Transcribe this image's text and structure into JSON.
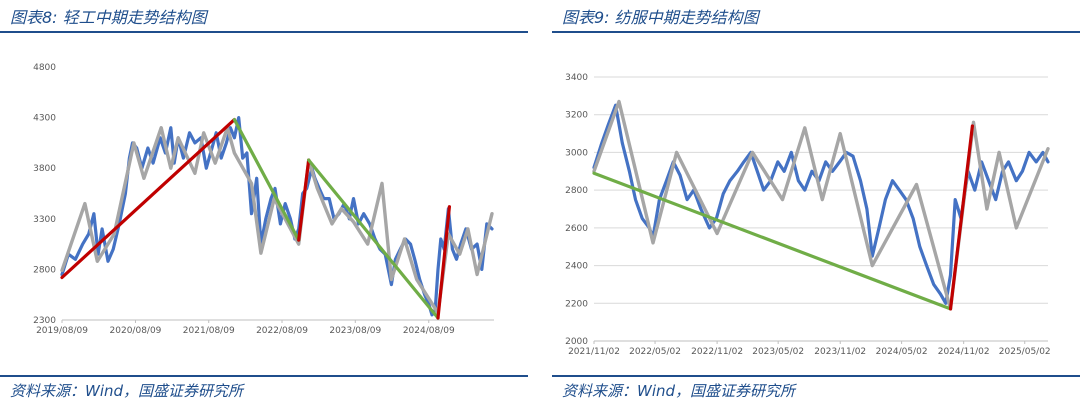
{
  "figures": [
    {
      "title": "图表8:  轻工中期走势结构图",
      "source": "资料来源：Wind，国盛证券研究所",
      "chart_data": {
        "type": "line",
        "ylim": [
          2300,
          4800
        ],
        "yticks": [
          2300,
          2800,
          3300,
          3800,
          4300,
          4800
        ],
        "xlim": [
          "2019-08-09",
          "2025-06-30"
        ],
        "xtick_labels": [
          "2019/08/09",
          "2020/08/09",
          "2021/08/09",
          "2022/08/09",
          "2023/08/09",
          "2024/08/09"
        ],
        "xtick_dates": [
          "2019-08-09",
          "2020-08-09",
          "2021-08-09",
          "2022-08-09",
          "2023-08-09",
          "2024-08-09"
        ],
        "grid": false,
        "series": [
          {
            "role": "index",
            "color": "#4472c4",
            "x": [
              "2019-08-09",
              "2019-09-10",
              "2019-10-15",
              "2019-11-20",
              "2019-12-20",
              "2020-01-15",
              "2020-02-05",
              "2020-02-25",
              "2020-03-25",
              "2020-04-20",
              "2020-05-20",
              "2020-06-20",
              "2020-07-10",
              "2020-07-25",
              "2020-08-15",
              "2020-09-10",
              "2020-10-10",
              "2020-11-05",
              "2020-12-10",
              "2021-01-05",
              "2021-02-01",
              "2021-02-18",
              "2021-03-10",
              "2021-04-05",
              "2021-05-05",
              "2021-06-01",
              "2021-07-01",
              "2021-07-28",
              "2021-08-25",
              "2021-09-15",
              "2021-10-10",
              "2021-11-05",
              "2021-11-25",
              "2021-12-15",
              "2022-01-05",
              "2022-01-25",
              "2022-02-15",
              "2022-03-10",
              "2022-04-05",
              "2022-04-26",
              "2022-05-20",
              "2022-06-15",
              "2022-07-05",
              "2022-08-01",
              "2022-08-25",
              "2022-09-20",
              "2022-10-12",
              "2022-10-31",
              "2022-11-20",
              "2022-12-10",
              "2023-01-05",
              "2023-01-20",
              "2023-02-10",
              "2023-03-05",
              "2023-04-01",
              "2023-04-25",
              "2023-05-20",
              "2023-06-15",
              "2023-07-10",
              "2023-07-31",
              "2023-08-25",
              "2023-09-20",
              "2023-10-20",
              "2023-11-15",
              "2023-12-10",
              "2024-01-05",
              "2024-02-05",
              "2024-02-25",
              "2024-03-20",
              "2024-04-15",
              "2024-05-10",
              "2024-05-31",
              "2024-06-25",
              "2024-07-20",
              "2024-08-10",
              "2024-08-25",
              "2024-09-10",
              "2024-09-24",
              "2024-10-08",
              "2024-10-25",
              "2024-11-15",
              "2024-12-05",
              "2024-12-25",
              "2025-01-15",
              "2025-02-10",
              "2025-03-10",
              "2025-04-07",
              "2025-04-30",
              "2025-05-25",
              "2025-06-20"
            ],
            "y": [
              2750,
              2950,
              2900,
              3050,
              3150,
              3350,
              2950,
              3200,
              2880,
              3000,
              3250,
              3550,
              3900,
              4050,
              4000,
              3800,
              4000,
              3850,
              4100,
              3950,
              4200,
              3850,
              4100,
              3900,
              4150,
              4050,
              4100,
              3800,
              4000,
              4150,
              3900,
              4050,
              4200,
              4100,
              4300,
              3900,
              3950,
              3350,
              3700,
              3050,
              3300,
              3500,
              3600,
              3250,
              3450,
              3300,
              3100,
              3200,
              3550,
              3600,
              3800,
              3700,
              3600,
              3500,
              3500,
              3300,
              3350,
              3450,
              3300,
              3500,
              3250,
              3350,
              3250,
              3100,
              3000,
              2950,
              2650,
              2900,
              3000,
              3100,
              3050,
              2900,
              2700,
              2550,
              2450,
              2350,
              2400,
              2800,
              3100,
              3000,
              3400,
              3000,
              2900,
              3050,
              3200,
              3000,
              3050,
              2800,
              3250,
              3200
            ]
          },
          {
            "role": "structure",
            "color": "#a6a6a6",
            "x": [
              "2019-08-09",
              "2019-12-01",
              "2020-02-01",
              "2020-04-25",
              "2020-08-01",
              "2020-09-20",
              "2020-12-15",
              "2021-02-01",
              "2021-03-10",
              "2021-06-01",
              "2021-07-15",
              "2021-09-10",
              "2021-11-10",
              "2021-12-15",
              "2022-03-10",
              "2022-04-26",
              "2022-07-01",
              "2022-10-31",
              "2022-12-20",
              "2023-02-01",
              "2023-04-15",
              "2023-06-01",
              "2023-07-31",
              "2023-10-10",
              "2023-12-20",
              "2024-02-05",
              "2024-04-10",
              "2024-06-10",
              "2024-09-24",
              "2024-11-15",
              "2025-01-10",
              "2025-02-20",
              "2025-04-07",
              "2025-06-20"
            ],
            "y": [
              2790,
              3450,
              2880,
              3150,
              4050,
              3700,
              4200,
              3800,
              4100,
              3750,
              4150,
              3850,
              4200,
              3950,
              3650,
              2960,
              3500,
              3050,
              3880,
              3600,
              3250,
              3400,
              3270,
              3050,
              3650,
              2700,
              3100,
              2700,
              2370,
              3150,
              2950,
              3200,
              2750,
              3350
            ]
          },
          {
            "role": "rise",
            "color": "#c00000",
            "x": [
              "2019-08-09",
              "2021-12-15"
            ],
            "y": [
              2720,
              4280
            ]
          },
          {
            "role": "decline",
            "color": "#70ad47",
            "x": [
              "2021-12-15",
              "2022-10-31"
            ],
            "y": [
              4280,
              3090
            ]
          },
          {
            "role": "rise",
            "color": "#c00000",
            "x": [
              "2022-10-31",
              "2022-12-20"
            ],
            "y": [
              3090,
              3880
            ]
          },
          {
            "role": "decline",
            "color": "#70ad47",
            "x": [
              "2022-12-20",
              "2024-09-24"
            ],
            "y": [
              3880,
              2320
            ]
          },
          {
            "role": "rise",
            "color": "#c00000",
            "x": [
              "2024-09-24",
              "2024-11-20"
            ],
            "y": [
              2320,
              3420
            ]
          }
        ]
      }
    },
    {
      "title": "图表9:  纺服中期走势结构图",
      "source": "资料来源：Wind，国盛证券研究所",
      "chart_data": {
        "type": "line",
        "ylim": [
          2000,
          3400
        ],
        "yticks": [
          2000,
          2200,
          2400,
          2600,
          2800,
          3000,
          3200,
          3400
        ],
        "xlim": [
          "2021-11-02",
          "2025-07-10"
        ],
        "xtick_labels": [
          "2021/11/02",
          "2022/05/02",
          "2022/11/02",
          "2023/05/02",
          "2023/11/02",
          "2024/05/02",
          "2024/11/02",
          "2025/05/02"
        ],
        "xtick_dates": [
          "2021-11-02",
          "2022-05-02",
          "2022-11-02",
          "2023-05-02",
          "2023-11-02",
          "2024-05-02",
          "2024-11-02",
          "2025-05-02"
        ],
        "grid": true,
        "series": [
          {
            "role": "index",
            "color": "#4472c4",
            "x": [
              "2021-11-02",
              "2021-11-25",
              "2021-12-15",
              "2022-01-05",
              "2022-01-25",
              "2022-02-15",
              "2022-03-05",
              "2022-03-25",
              "2022-04-15",
              "2022-04-26",
              "2022-05-15",
              "2022-06-05",
              "2022-06-25",
              "2022-07-15",
              "2022-08-05",
              "2022-08-25",
              "2022-09-15",
              "2022-10-10",
              "2022-10-31",
              "2022-11-20",
              "2022-12-10",
              "2023-01-01",
              "2023-01-20",
              "2023-02-10",
              "2023-03-01",
              "2023-03-20",
              "2023-04-10",
              "2023-05-01",
              "2023-05-20",
              "2023-06-10",
              "2023-07-01",
              "2023-07-20",
              "2023-08-10",
              "2023-08-31",
              "2023-09-20",
              "2023-10-10",
              "2023-10-31",
              "2023-11-20",
              "2023-12-10",
              "2024-01-01",
              "2024-01-20",
              "2024-02-05",
              "2024-02-25",
              "2024-03-15",
              "2024-04-05",
              "2024-04-25",
              "2024-05-15",
              "2024-06-05",
              "2024-06-25",
              "2024-07-15",
              "2024-08-05",
              "2024-08-25",
              "2024-09-10",
              "2024-09-24",
              "2024-10-08",
              "2024-10-25",
              "2024-11-15",
              "2024-12-05",
              "2024-12-25",
              "2025-01-15",
              "2025-02-05",
              "2025-02-25",
              "2025-03-15",
              "2025-04-07",
              "2025-04-25",
              "2025-05-15",
              "2025-06-05",
              "2025-06-25",
              "2025-07-10"
            ],
            "y": [
              2920,
              3050,
              3150,
              3250,
              3050,
              2900,
              2750,
              2650,
              2600,
              2550,
              2750,
              2850,
              2950,
              2880,
              2750,
              2800,
              2700,
              2600,
              2650,
              2780,
              2850,
              2900,
              2950,
              3000,
              2900,
              2800,
              2850,
              2950,
              2900,
              3000,
              2850,
              2800,
              2900,
              2850,
              2950,
              2900,
              2950,
              3000,
              2980,
              2850,
              2700,
              2450,
              2600,
              2750,
              2850,
              2800,
              2750,
              2650,
              2500,
              2400,
              2300,
              2250,
              2200,
              2350,
              2750,
              2650,
              2900,
              2800,
              2950,
              2850,
              2750,
              2900,
              2950,
              2850,
              2900,
              3000,
              2950,
              3000,
              2950
            ]
          },
          {
            "role": "structure",
            "color": "#a6a6a6",
            "x": [
              "2021-11-02",
              "2022-01-15",
              "2022-04-26",
              "2022-07-05",
              "2022-11-02",
              "2023-02-15",
              "2023-05-15",
              "2023-07-20",
              "2023-09-10",
              "2023-11-02",
              "2024-02-05",
              "2024-06-15",
              "2024-09-24",
              "2024-12-01",
              "2025-01-10",
              "2025-02-15",
              "2025-04-07",
              "2025-07-10"
            ],
            "y": [
              2900,
              3270,
              2520,
              3000,
              2570,
              3000,
              2750,
              3130,
              2750,
              3100,
              2400,
              2830,
              2170,
              3160,
              2700,
              3000,
              2600,
              3020
            ]
          },
          {
            "role": "decline",
            "color": "#70ad47",
            "x": [
              "2021-11-02",
              "2024-09-24"
            ],
            "y": [
              2890,
              2170
            ]
          },
          {
            "role": "rise",
            "color": "#c00000",
            "x": [
              "2024-09-24",
              "2024-11-28"
            ],
            "y": [
              2170,
              3140
            ]
          }
        ]
      }
    }
  ]
}
